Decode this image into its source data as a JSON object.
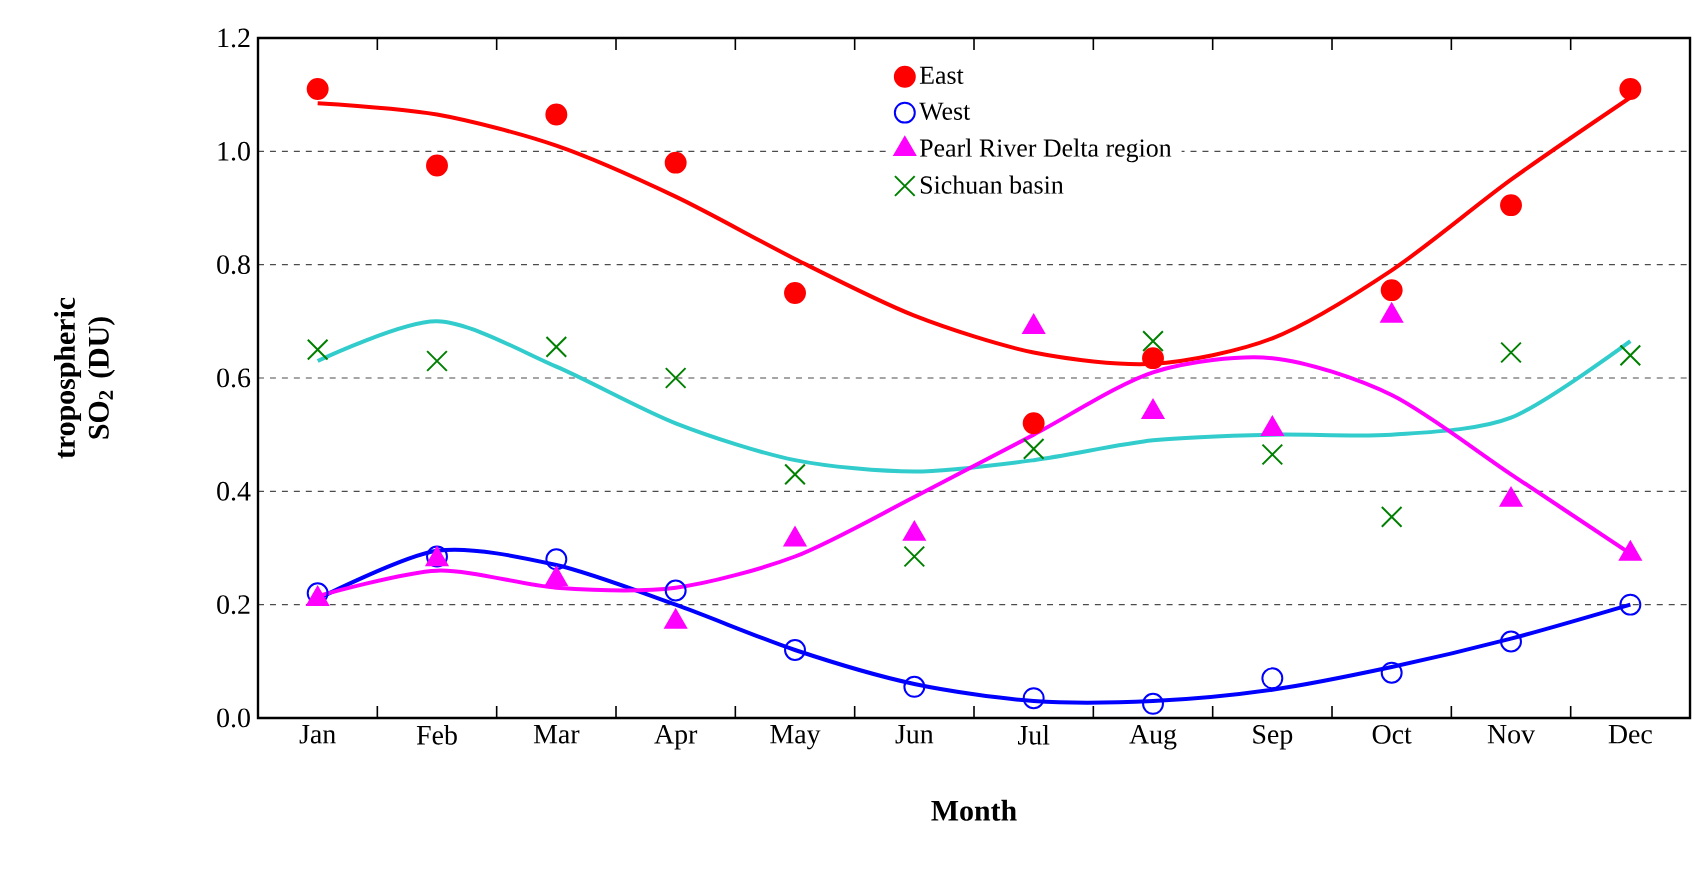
{
  "chart_data": {
    "type": "scatter",
    "xlabel": "**Month**",
    "ylabel": "**tropospheric SO$_{2}$ (DU)**",
    "categories": [
      "Jan",
      "Feb",
      "Mar",
      "Apr",
      "May",
      "Jun",
      "Jul",
      "Aug",
      "Sep",
      "Oct",
      "Nov",
      "Dec"
    ],
    "ylim": [
      0,
      1.2
    ],
    "yticks": [
      {
        "value": 0,
        "label": "0.0"
      },
      {
        "value": 0.2,
        "label": "0.2"
      },
      {
        "value": 0.4,
        "label": "0.4"
      },
      {
        "value": 0.6,
        "label": "0.6"
      },
      {
        "value": 0.8,
        "label": "0.8"
      },
      {
        "value": 1.0,
        "label": "1.0"
      },
      {
        "value": 1.2,
        "label": "1.2"
      }
    ],
    "grid": "y",
    "legend": "top",
    "series": [
      {
        "name": "East",
        "marker": "circle",
        "color": "#ff0000",
        "values": [
          1.11,
          0.975,
          1.065,
          0.98,
          0.75,
          null,
          0.52,
          0.635,
          null,
          0.755,
          0.905,
          1.11
        ]
      },
      {
        "name": "West",
        "marker": "circle-open",
        "color": "#0000ff",
        "values": [
          0.22,
          0.285,
          0.28,
          0.225,
          0.12,
          0.055,
          0.035,
          0.025,
          0.07,
          0.08,
          0.135,
          0.2
        ]
      },
      {
        "name": "Pearl River Delta region",
        "marker": "triangle",
        "color": "#ff00ff",
        "values": [
          0.21,
          0.28,
          0.245,
          0.17,
          0.315,
          0.325,
          0.69,
          0.54,
          0.51,
          0.71,
          0.385,
          0.29
        ]
      },
      {
        "name": "Sichuan basin",
        "marker": "cross",
        "color": "#008000",
        "values": [
          0.65,
          0.63,
          0.655,
          0.6,
          0.43,
          0.285,
          0.475,
          0.665,
          0.465,
          0.355,
          0.645,
          0.64
        ]
      },
      {
        "type": "line",
        "marker": "none",
        "color": "#ff0000",
        "values": [
          1.085,
          1.065,
          1.01,
          0.92,
          0.81,
          0.71,
          0.645,
          0.625,
          0.67,
          0.79,
          0.95,
          1.095
        ]
      },
      {
        "type": "line",
        "marker": "none",
        "color": "#33cccc",
        "values": [
          0.63,
          0.7,
          0.62,
          0.52,
          0.455,
          0.435,
          0.455,
          0.49,
          0.5,
          0.5,
          0.53,
          0.665
        ]
      },
      {
        "type": "line",
        "marker": "none",
        "color": "#0000ff",
        "values": [
          0.21,
          0.295,
          0.27,
          0.2,
          0.12,
          0.06,
          0.03,
          0.03,
          0.05,
          0.09,
          0.14,
          0.2
        ]
      },
      {
        "type": "line",
        "marker": "none",
        "color": "#ff00ff",
        "values": [
          0.215,
          0.26,
          0.23,
          0.23,
          0.285,
          0.39,
          0.5,
          0.61,
          0.635,
          0.57,
          0.43,
          0.29
        ]
      }
    ]
  }
}
